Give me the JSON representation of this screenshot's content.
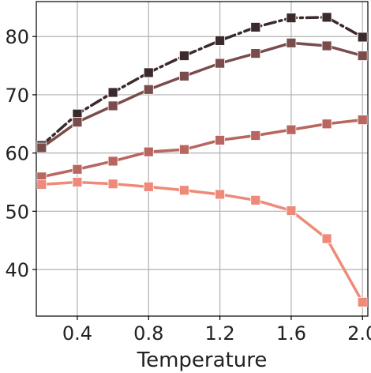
{
  "chart_data": {
    "type": "line",
    "title": "",
    "xlabel": "Temperature",
    "ylabel": "",
    "xlim": [
      0.17,
      2.03
    ],
    "ylim": [
      32,
      86
    ],
    "grid": true,
    "legend": "none",
    "x": [
      0.2,
      0.4,
      0.6,
      0.8,
      1.0,
      1.2,
      1.4,
      1.6,
      1.8,
      2.0
    ],
    "x_ticks": [
      0.4,
      0.8,
      1.2,
      1.6,
      2.0
    ],
    "x_tick_labels": [
      "0.4",
      "0.8",
      "1.2",
      "1.6",
      "2.0"
    ],
    "y_ticks": [
      40,
      50,
      60,
      70,
      80
    ],
    "y_tick_labels": [
      "40",
      "50",
      "60",
      "70",
      "80"
    ],
    "series": [
      {
        "values": [
          61.3,
          66.7,
          70.4,
          73.8,
          76.7,
          79.3,
          81.6,
          83.2,
          83.3,
          79.9
        ],
        "color": "#3a2a2c",
        "dashed": true
      },
      {
        "values": [
          60.9,
          65.3,
          68.1,
          70.9,
          73.2,
          75.4,
          77.1,
          78.9,
          78.4,
          76.7
        ],
        "color": "#7a4c4c",
        "dashed": false
      },
      {
        "values": [
          55.9,
          57.2,
          58.6,
          60.2,
          60.6,
          62.2,
          63.0,
          64.0,
          65.0,
          65.7
        ],
        "color": "#b8665f",
        "dashed": false
      },
      {
        "values": [
          54.6,
          55.0,
          54.7,
          54.2,
          53.6,
          52.9,
          51.9,
          50.1,
          45.3,
          34.4
        ],
        "color": "#ef8a7a",
        "dashed": false
      }
    ]
  }
}
